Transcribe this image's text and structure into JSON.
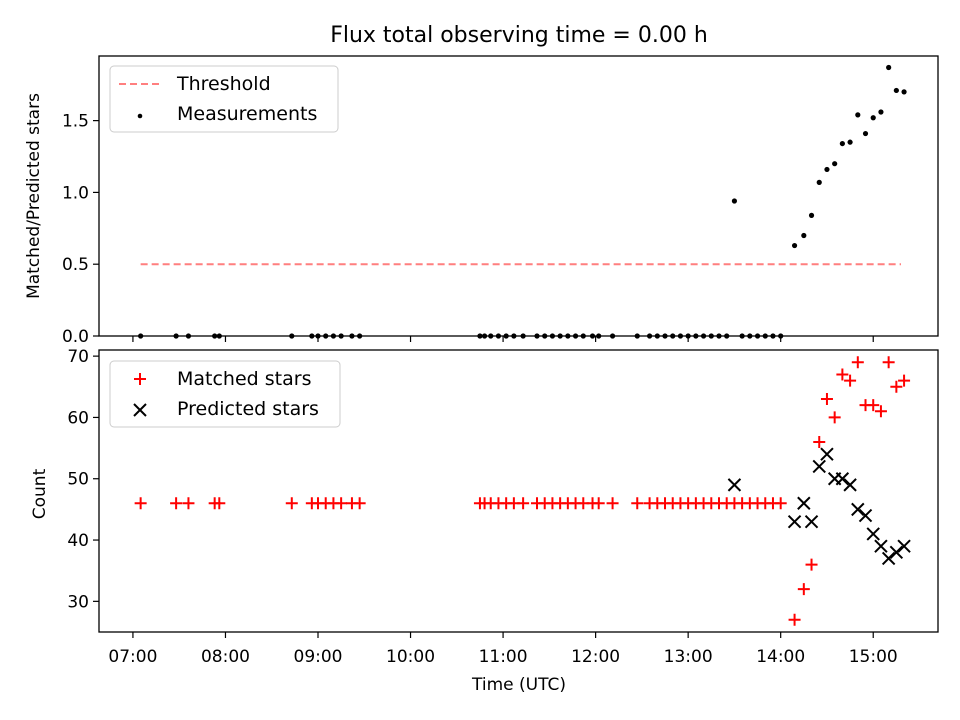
{
  "chart_data": [
    {
      "type": "scatter",
      "title": "Flux total observing time = 0.00 h",
      "xlabel": "",
      "ylabel": "Matched/Predicted stars",
      "xlim": [
        "06:38",
        "15:42"
      ],
      "ylim": [
        0.0,
        1.95
      ],
      "yticks": [
        0.0,
        0.5,
        1.0,
        1.5
      ],
      "ytick_labels": [
        "0.0",
        "0.5",
        "1.0",
        "1.5"
      ],
      "grid": false,
      "legend": "top-left",
      "series": [
        {
          "name": "Threshold",
          "kind": "dashed-line",
          "color": "#ff7f7f",
          "x": [
            "07:05",
            "15:18"
          ],
          "y": [
            0.5,
            0.5
          ]
        },
        {
          "name": "Measurements",
          "kind": "points",
          "color": "#000000",
          "x": [
            "07:05",
            "07:28",
            "07:36",
            "07:53",
            "07:56",
            "08:43",
            "08:56",
            "09:00",
            "09:05",
            "09:10",
            "09:15",
            "09:22",
            "09:27",
            "10:45",
            "10:48",
            "10:52",
            "10:57",
            "11:02",
            "11:07",
            "11:13",
            "11:22",
            "11:27",
            "11:32",
            "11:37",
            "11:42",
            "11:47",
            "11:52",
            "11:58",
            "12:02",
            "12:11",
            "12:27",
            "12:35",
            "12:40",
            "12:45",
            "12:50",
            "12:55",
            "13:00",
            "13:05",
            "13:10",
            "13:15",
            "13:20",
            "13:25",
            "13:30",
            "13:35",
            "13:40",
            "13:45",
            "13:50",
            "13:55",
            "14:00",
            "14:09",
            "14:15",
            "14:20",
            "14:25",
            "14:30",
            "14:35",
            "14:40",
            "14:45",
            "14:50",
            "14:55",
            "15:00",
            "15:05",
            "15:10",
            "15:15",
            "15:20"
          ],
          "y": [
            0.0,
            0.0,
            0.0,
            0.0,
            0.0,
            0.0,
            0.0,
            0.0,
            0.0,
            0.0,
            0.0,
            0.0,
            0.0,
            0.0,
            0.0,
            0.0,
            0.0,
            0.0,
            0.0,
            0.0,
            0.0,
            0.0,
            0.0,
            0.0,
            0.0,
            0.0,
            0.0,
            0.0,
            0.0,
            0.0,
            0.0,
            0.0,
            0.0,
            0.0,
            0.0,
            0.0,
            0.0,
            0.0,
            0.0,
            0.0,
            0.0,
            0.0,
            0.94,
            0.0,
            0.0,
            0.0,
            0.0,
            0.0,
            0.0,
            0.63,
            0.7,
            0.84,
            1.07,
            1.16,
            1.2,
            1.34,
            1.35,
            1.54,
            1.41,
            1.52,
            1.56,
            1.87,
            1.71,
            1.7
          ]
        }
      ]
    },
    {
      "type": "scatter",
      "title": "",
      "xlabel": "Time (UTC)",
      "ylabel": "Count",
      "xlim": [
        "06:38",
        "15:42"
      ],
      "ylim": [
        25,
        71
      ],
      "yticks": [
        30,
        40,
        50,
        60,
        70
      ],
      "ytick_labels": [
        "30",
        "40",
        "50",
        "60",
        "70"
      ],
      "xticks": [
        "07:00",
        "08:00",
        "09:00",
        "10:00",
        "11:00",
        "12:00",
        "13:00",
        "14:00",
        "15:00"
      ],
      "xtick_labels": [
        "07:00",
        "08:00",
        "09:00",
        "10:00",
        "11:00",
        "12:00",
        "13:00",
        "14:00",
        "15:00"
      ],
      "grid": false,
      "legend": "top-left",
      "series": [
        {
          "name": "Matched stars",
          "marker": "plus",
          "color": "#ff0000",
          "x": [
            "07:05",
            "07:28",
            "07:36",
            "07:53",
            "07:56",
            "08:43",
            "08:56",
            "09:00",
            "09:05",
            "09:10",
            "09:15",
            "09:22",
            "09:27",
            "10:45",
            "10:48",
            "10:52",
            "10:57",
            "11:02",
            "11:07",
            "11:13",
            "11:22",
            "11:27",
            "11:32",
            "11:37",
            "11:42",
            "11:47",
            "11:52",
            "11:58",
            "12:02",
            "12:11",
            "12:27",
            "12:35",
            "12:40",
            "12:45",
            "12:50",
            "12:55",
            "13:00",
            "13:05",
            "13:10",
            "13:15",
            "13:20",
            "13:25",
            "13:30",
            "13:35",
            "13:40",
            "13:45",
            "13:50",
            "13:55",
            "14:00",
            "14:09",
            "14:15",
            "14:20",
            "14:25",
            "14:30",
            "14:35",
            "14:40",
            "14:45",
            "14:50",
            "14:55",
            "15:00",
            "15:05",
            "15:10",
            "15:15",
            "15:20"
          ],
          "y": [
            46,
            46,
            46,
            46,
            46,
            46,
            46,
            46,
            46,
            46,
            46,
            46,
            46,
            46,
            46,
            46,
            46,
            46,
            46,
            46,
            46,
            46,
            46,
            46,
            46,
            46,
            46,
            46,
            46,
            46,
            46,
            46,
            46,
            46,
            46,
            46,
            46,
            46,
            46,
            46,
            46,
            46,
            46,
            46,
            46,
            46,
            46,
            46,
            46,
            27,
            32,
            36,
            56,
            63,
            60,
            67,
            66,
            69,
            62,
            62,
            61,
            69,
            65,
            66
          ]
        },
        {
          "name": "Predicted stars",
          "marker": "x",
          "color": "#000000",
          "x": [
            "13:30",
            "14:09",
            "14:15",
            "14:20",
            "14:25",
            "14:30",
            "14:35",
            "14:40",
            "14:45",
            "14:50",
            "14:55",
            "15:00",
            "15:05",
            "15:10",
            "15:15",
            "15:20"
          ],
          "y": [
            49,
            43,
            46,
            43,
            52,
            54,
            50,
            50,
            49,
            45,
            44,
            41,
            39,
            37,
            38,
            39
          ]
        }
      ]
    }
  ]
}
